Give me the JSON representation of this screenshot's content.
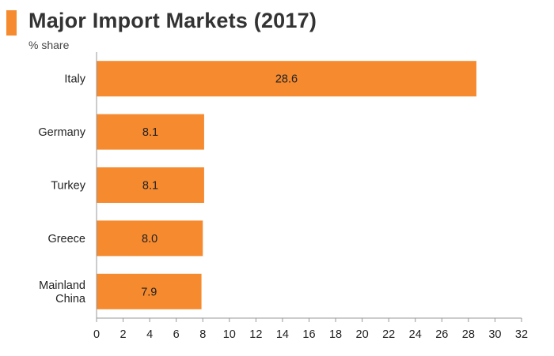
{
  "header": {
    "title": "Major Import Markets (2017)",
    "subtitle": "% share",
    "accent_color": "#f58a2f"
  },
  "chart_data": {
    "type": "bar",
    "orientation": "horizontal",
    "title": "Major Import Markets (2017)",
    "ylabel": "% share",
    "xlabel": "",
    "categories": [
      [
        "Italy"
      ],
      [
        "Germany"
      ],
      [
        "Turkey"
      ],
      [
        "Greece"
      ],
      [
        "Mainland",
        "China"
      ]
    ],
    "values": [
      28.6,
      8.1,
      8.1,
      8.0,
      7.9
    ],
    "value_labels": [
      "28.6",
      "8.1",
      "8.1",
      "8.0",
      "7.9"
    ],
    "xlim": [
      0,
      32
    ],
    "xticks": [
      0,
      2,
      4,
      6,
      8,
      10,
      12,
      14,
      16,
      18,
      20,
      22,
      24,
      26,
      28,
      30,
      32
    ],
    "bar_color": "#f58a2f",
    "grid": false,
    "legend": "none"
  }
}
